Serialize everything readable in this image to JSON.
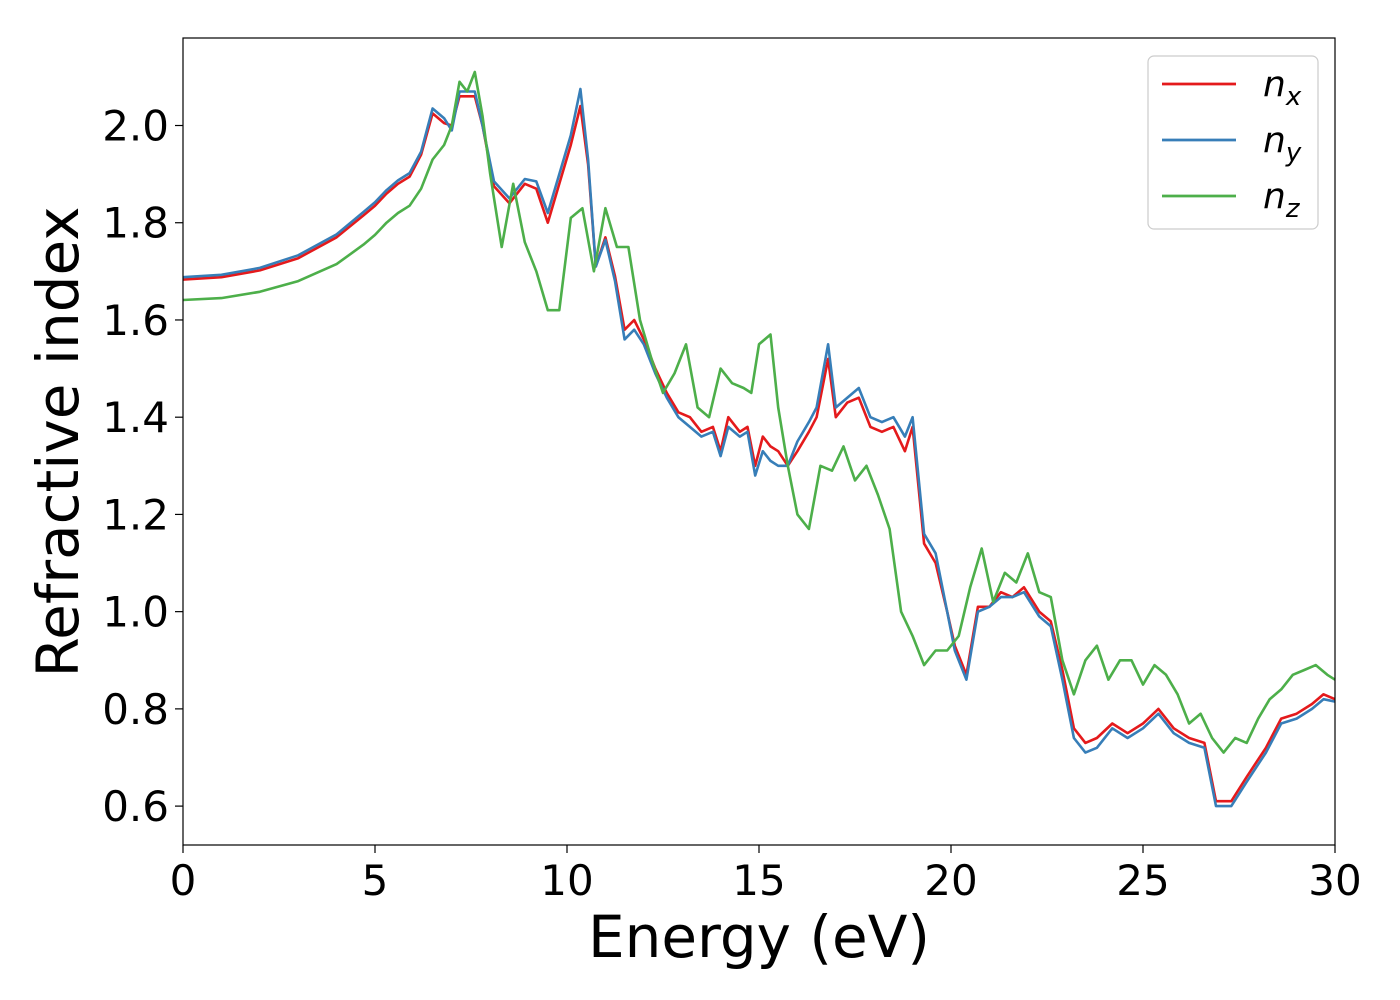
{
  "chart_data": {
    "type": "line",
    "title": "",
    "xlabel": "Energy (eV)",
    "ylabel": "Refractive index",
    "xlim": [
      0,
      30
    ],
    "ylim": [
      0.52,
      2.18
    ],
    "xticks": [
      0,
      5,
      10,
      15,
      20,
      25,
      30
    ],
    "yticks": [
      0.6,
      0.8,
      1.0,
      1.2,
      1.4,
      1.6,
      1.8,
      2.0
    ],
    "grid": false,
    "legend_position": "top-right",
    "series": [
      {
        "name": "n",
        "subscript": "x",
        "color": "#e41a1c",
        "points": [
          [
            0,
            1.683
          ],
          [
            1,
            1.688
          ],
          [
            2,
            1.702
          ],
          [
            3,
            1.727
          ],
          [
            4,
            1.77
          ],
          [
            4.7,
            1.815
          ],
          [
            5,
            1.835
          ],
          [
            5.3,
            1.86
          ],
          [
            5.6,
            1.88
          ],
          [
            5.9,
            1.895
          ],
          [
            6.2,
            1.94
          ],
          [
            6.5,
            2.025
          ],
          [
            6.8,
            2.005
          ],
          [
            7.0,
            2.0
          ],
          [
            7.2,
            2.06
          ],
          [
            7.6,
            2.06
          ],
          [
            7.8,
            2.0
          ],
          [
            8.1,
            1.875
          ],
          [
            8.5,
            1.84
          ],
          [
            8.9,
            1.88
          ],
          [
            9.2,
            1.87
          ],
          [
            9.5,
            1.8
          ],
          [
            9.8,
            1.88
          ],
          [
            10.1,
            1.96
          ],
          [
            10.35,
            2.04
          ],
          [
            10.55,
            1.92
          ],
          [
            10.75,
            1.71
          ],
          [
            11.0,
            1.77
          ],
          [
            11.25,
            1.69
          ],
          [
            11.5,
            1.58
          ],
          [
            11.75,
            1.6
          ],
          [
            12.0,
            1.56
          ],
          [
            12.3,
            1.5
          ],
          [
            12.6,
            1.45
          ],
          [
            12.9,
            1.41
          ],
          [
            13.2,
            1.4
          ],
          [
            13.5,
            1.37
          ],
          [
            13.8,
            1.38
          ],
          [
            14.0,
            1.33
          ],
          [
            14.2,
            1.4
          ],
          [
            14.5,
            1.37
          ],
          [
            14.7,
            1.38
          ],
          [
            14.9,
            1.3
          ],
          [
            15.1,
            1.36
          ],
          [
            15.3,
            1.34
          ],
          [
            15.5,
            1.33
          ],
          [
            15.75,
            1.3
          ],
          [
            16.0,
            1.33
          ],
          [
            16.3,
            1.37
          ],
          [
            16.5,
            1.4
          ],
          [
            16.8,
            1.52
          ],
          [
            17.0,
            1.4
          ],
          [
            17.3,
            1.43
          ],
          [
            17.6,
            1.44
          ],
          [
            17.9,
            1.38
          ],
          [
            18.2,
            1.37
          ],
          [
            18.5,
            1.38
          ],
          [
            18.8,
            1.33
          ],
          [
            19.0,
            1.38
          ],
          [
            19.3,
            1.14
          ],
          [
            19.6,
            1.1
          ],
          [
            19.9,
            1.0
          ],
          [
            20.1,
            0.93
          ],
          [
            20.4,
            0.87
          ],
          [
            20.7,
            1.01
          ],
          [
            21.0,
            1.01
          ],
          [
            21.3,
            1.04
          ],
          [
            21.6,
            1.03
          ],
          [
            21.9,
            1.05
          ],
          [
            22.3,
            1.0
          ],
          [
            22.6,
            0.98
          ],
          [
            22.9,
            0.88
          ],
          [
            23.2,
            0.76
          ],
          [
            23.5,
            0.73
          ],
          [
            23.8,
            0.74
          ],
          [
            24.2,
            0.77
          ],
          [
            24.6,
            0.75
          ],
          [
            25.0,
            0.77
          ],
          [
            25.4,
            0.8
          ],
          [
            25.8,
            0.76
          ],
          [
            26.2,
            0.74
          ],
          [
            26.6,
            0.73
          ],
          [
            26.9,
            0.61
          ],
          [
            27.3,
            0.61
          ],
          [
            27.7,
            0.66
          ],
          [
            28.2,
            0.72
          ],
          [
            28.6,
            0.78
          ],
          [
            29.0,
            0.79
          ],
          [
            29.4,
            0.81
          ],
          [
            29.7,
            0.83
          ],
          [
            30,
            0.82
          ]
        ]
      },
      {
        "name": "n",
        "subscript": "y",
        "color": "#377eb8",
        "points": [
          [
            0,
            1.688
          ],
          [
            1,
            1.693
          ],
          [
            2,
            1.707
          ],
          [
            3,
            1.733
          ],
          [
            4,
            1.776
          ],
          [
            4.7,
            1.822
          ],
          [
            5,
            1.842
          ],
          [
            5.3,
            1.867
          ],
          [
            5.6,
            1.887
          ],
          [
            5.9,
            1.902
          ],
          [
            6.2,
            1.946
          ],
          [
            6.5,
            2.035
          ],
          [
            6.8,
            2.015
          ],
          [
            7.0,
            1.99
          ],
          [
            7.2,
            2.07
          ],
          [
            7.6,
            2.07
          ],
          [
            7.8,
            2.0
          ],
          [
            8.1,
            1.885
          ],
          [
            8.5,
            1.85
          ],
          [
            8.9,
            1.89
          ],
          [
            9.2,
            1.885
          ],
          [
            9.5,
            1.82
          ],
          [
            9.8,
            1.9
          ],
          [
            10.1,
            1.98
          ],
          [
            10.35,
            2.075
          ],
          [
            10.55,
            1.93
          ],
          [
            10.75,
            1.71
          ],
          [
            11.0,
            1.765
          ],
          [
            11.25,
            1.68
          ],
          [
            11.5,
            1.56
          ],
          [
            11.75,
            1.58
          ],
          [
            12.0,
            1.55
          ],
          [
            12.3,
            1.49
          ],
          [
            12.6,
            1.44
          ],
          [
            12.9,
            1.4
          ],
          [
            13.2,
            1.38
          ],
          [
            13.5,
            1.36
          ],
          [
            13.8,
            1.37
          ],
          [
            14.0,
            1.32
          ],
          [
            14.2,
            1.38
          ],
          [
            14.5,
            1.36
          ],
          [
            14.7,
            1.37
          ],
          [
            14.9,
            1.28
          ],
          [
            15.1,
            1.33
          ],
          [
            15.3,
            1.31
          ],
          [
            15.5,
            1.3
          ],
          [
            15.75,
            1.3
          ],
          [
            16.0,
            1.35
          ],
          [
            16.3,
            1.39
          ],
          [
            16.5,
            1.42
          ],
          [
            16.8,
            1.55
          ],
          [
            17.0,
            1.42
          ],
          [
            17.3,
            1.44
          ],
          [
            17.6,
            1.46
          ],
          [
            17.9,
            1.4
          ],
          [
            18.2,
            1.39
          ],
          [
            18.5,
            1.4
          ],
          [
            18.8,
            1.36
          ],
          [
            19.0,
            1.4
          ],
          [
            19.3,
            1.16
          ],
          [
            19.6,
            1.12
          ],
          [
            19.9,
            1.0
          ],
          [
            20.1,
            0.92
          ],
          [
            20.4,
            0.86
          ],
          [
            20.7,
            1.0
          ],
          [
            21.0,
            1.01
          ],
          [
            21.3,
            1.03
          ],
          [
            21.6,
            1.03
          ],
          [
            21.9,
            1.04
          ],
          [
            22.3,
            0.99
          ],
          [
            22.6,
            0.97
          ],
          [
            22.9,
            0.86
          ],
          [
            23.2,
            0.74
          ],
          [
            23.5,
            0.71
          ],
          [
            23.8,
            0.72
          ],
          [
            24.2,
            0.76
          ],
          [
            24.6,
            0.74
          ],
          [
            25.0,
            0.76
          ],
          [
            25.4,
            0.79
          ],
          [
            25.8,
            0.75
          ],
          [
            26.2,
            0.73
          ],
          [
            26.6,
            0.72
          ],
          [
            26.9,
            0.6
          ],
          [
            27.3,
            0.6
          ],
          [
            27.7,
            0.65
          ],
          [
            28.2,
            0.71
          ],
          [
            28.6,
            0.77
          ],
          [
            29.0,
            0.78
          ],
          [
            29.4,
            0.8
          ],
          [
            29.7,
            0.82
          ],
          [
            30,
            0.815
          ]
        ]
      },
      {
        "name": "n",
        "subscript": "z",
        "color": "#4daf4a",
        "points": [
          [
            0,
            1.641
          ],
          [
            1,
            1.645
          ],
          [
            2,
            1.658
          ],
          [
            3,
            1.68
          ],
          [
            4,
            1.715
          ],
          [
            4.7,
            1.755
          ],
          [
            5,
            1.775
          ],
          [
            5.3,
            1.8
          ],
          [
            5.6,
            1.82
          ],
          [
            5.9,
            1.835
          ],
          [
            6.2,
            1.87
          ],
          [
            6.5,
            1.93
          ],
          [
            6.8,
            1.96
          ],
          [
            7.0,
            2.0
          ],
          [
            7.2,
            2.09
          ],
          [
            7.4,
            2.07
          ],
          [
            7.6,
            2.11
          ],
          [
            7.8,
            2.02
          ],
          [
            8.0,
            1.9
          ],
          [
            8.3,
            1.75
          ],
          [
            8.6,
            1.88
          ],
          [
            8.9,
            1.76
          ],
          [
            9.2,
            1.7
          ],
          [
            9.5,
            1.62
          ],
          [
            9.8,
            1.62
          ],
          [
            10.1,
            1.81
          ],
          [
            10.4,
            1.83
          ],
          [
            10.7,
            1.7
          ],
          [
            11.0,
            1.83
          ],
          [
            11.3,
            1.75
          ],
          [
            11.6,
            1.75
          ],
          [
            11.9,
            1.6
          ],
          [
            12.2,
            1.52
          ],
          [
            12.5,
            1.45
          ],
          [
            12.8,
            1.49
          ],
          [
            13.1,
            1.55
          ],
          [
            13.4,
            1.42
          ],
          [
            13.7,
            1.4
          ],
          [
            14.0,
            1.5
          ],
          [
            14.3,
            1.47
          ],
          [
            14.6,
            1.46
          ],
          [
            14.8,
            1.45
          ],
          [
            15.0,
            1.55
          ],
          [
            15.3,
            1.57
          ],
          [
            15.5,
            1.42
          ],
          [
            15.75,
            1.3
          ],
          [
            16.0,
            1.2
          ],
          [
            16.3,
            1.17
          ],
          [
            16.6,
            1.3
          ],
          [
            16.9,
            1.29
          ],
          [
            17.2,
            1.34
          ],
          [
            17.5,
            1.27
          ],
          [
            17.8,
            1.3
          ],
          [
            18.1,
            1.24
          ],
          [
            18.4,
            1.17
          ],
          [
            18.7,
            1.0
          ],
          [
            19.0,
            0.95
          ],
          [
            19.3,
            0.89
          ],
          [
            19.6,
            0.92
          ],
          [
            19.9,
            0.92
          ],
          [
            20.2,
            0.95
          ],
          [
            20.5,
            1.05
          ],
          [
            20.8,
            1.13
          ],
          [
            21.1,
            1.02
          ],
          [
            21.4,
            1.08
          ],
          [
            21.7,
            1.06
          ],
          [
            22.0,
            1.12
          ],
          [
            22.3,
            1.04
          ],
          [
            22.6,
            1.03
          ],
          [
            22.9,
            0.9
          ],
          [
            23.2,
            0.83
          ],
          [
            23.5,
            0.9
          ],
          [
            23.8,
            0.93
          ],
          [
            24.1,
            0.86
          ],
          [
            24.4,
            0.9
          ],
          [
            24.7,
            0.9
          ],
          [
            25.0,
            0.85
          ],
          [
            25.3,
            0.89
          ],
          [
            25.6,
            0.87
          ],
          [
            25.9,
            0.83
          ],
          [
            26.2,
            0.77
          ],
          [
            26.5,
            0.79
          ],
          [
            26.8,
            0.74
          ],
          [
            27.1,
            0.71
          ],
          [
            27.4,
            0.74
          ],
          [
            27.7,
            0.73
          ],
          [
            28.0,
            0.78
          ],
          [
            28.3,
            0.82
          ],
          [
            28.6,
            0.84
          ],
          [
            28.9,
            0.87
          ],
          [
            29.2,
            0.88
          ],
          [
            29.5,
            0.89
          ],
          [
            29.8,
            0.87
          ],
          [
            30,
            0.86
          ]
        ]
      }
    ]
  }
}
